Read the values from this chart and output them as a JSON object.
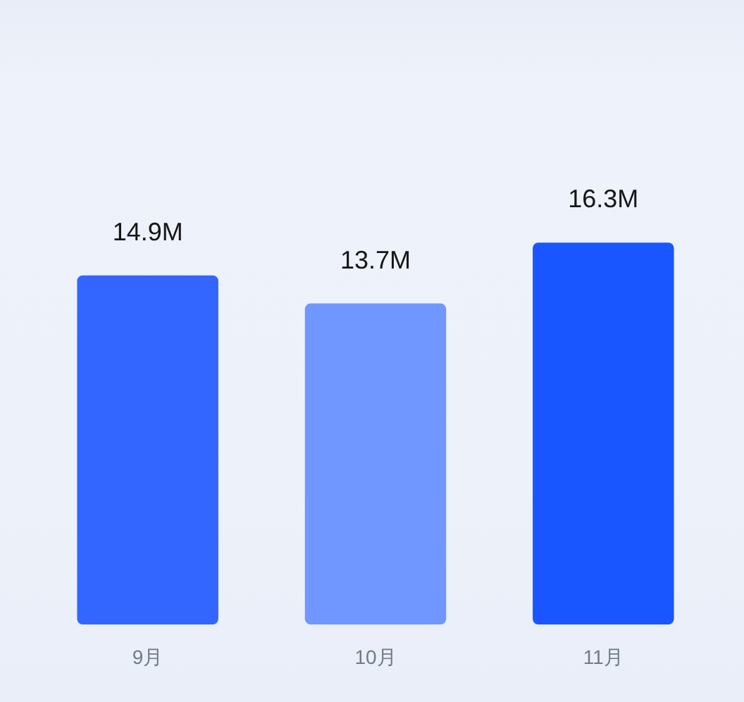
{
  "chart_data": {
    "type": "bar",
    "categories": [
      "9月",
      "10月",
      "11月"
    ],
    "values": [
      14.9,
      13.7,
      16.3
    ],
    "colors": [
      "#3366ff",
      "#7096ff",
      "#1a56ff"
    ],
    "value_labels": [
      "14.9M",
      "13.7M",
      "16.3M"
    ]
  }
}
